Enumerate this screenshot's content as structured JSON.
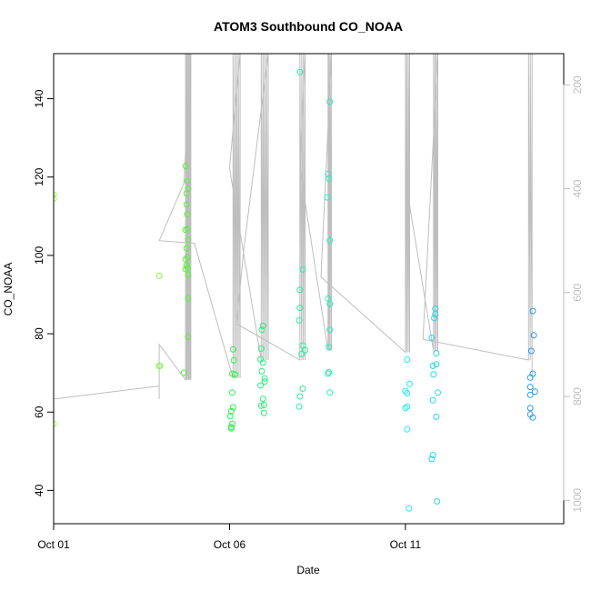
{
  "chart_data": {
    "type": "scatter",
    "title": "ATOM3 Southbound CO_NOAA",
    "xlabel": "Date",
    "ylabel": "CO_NOAA",
    "xlim": [
      0.0,
      14.5
    ],
    "ylim": [
      31.5,
      151.5
    ],
    "y2lim": [
      1045,
      140
    ],
    "x_ticks": [
      {
        "value": 0,
        "label": "Oct 01"
      },
      {
        "value": 5,
        "label": "Oct 06"
      },
      {
        "value": 10,
        "label": "Oct 11"
      }
    ],
    "y_ticks": [
      40,
      60,
      80,
      100,
      120,
      140
    ],
    "y2_ticks": [
      200,
      400,
      600,
      800,
      1000
    ],
    "grid": false,
    "legend": "none",
    "colors": {
      "pressure_line": "#bebebe",
      "frame": "#000000"
    },
    "series": [
      {
        "kind": "points",
        "points": [
          {
            "x": 0.0,
            "y": 115.5,
            "color": "#a0ff3a"
          },
          {
            "x": 0.0,
            "y": 114.5,
            "color": "#a0ff3a"
          },
          {
            "x": 0.0,
            "y": 57.0,
            "color": "#a0ff3a"
          },
          {
            "x": 3.0,
            "y": 94.8,
            "color": "#7ef53c"
          },
          {
            "x": 3.0,
            "y": 71.8,
            "color": "#7ef53c"
          },
          {
            "x": 3.02,
            "y": 71.8,
            "color": "#7ef53c"
          },
          {
            "x": 3.75,
            "y": 122.8,
            "color": "#5cf03c"
          },
          {
            "x": 3.78,
            "y": 115.8,
            "color": "#5cf03c"
          },
          {
            "x": 3.8,
            "y": 119.0,
            "color": "#5cf03c"
          },
          {
            "x": 3.82,
            "y": 117.0,
            "color": "#5cf03c"
          },
          {
            "x": 3.78,
            "y": 113.0,
            "color": "#5cf03c"
          },
          {
            "x": 3.8,
            "y": 110.5,
            "color": "#5cf03c"
          },
          {
            "x": 3.75,
            "y": 106.5,
            "color": "#5cf03c"
          },
          {
            "x": 3.8,
            "y": 106.8,
            "color": "#5cf03c"
          },
          {
            "x": 3.82,
            "y": 104.0,
            "color": "#5cf03c"
          },
          {
            "x": 3.78,
            "y": 101.8,
            "color": "#5cf03c"
          },
          {
            "x": 3.8,
            "y": 99.5,
            "color": "#5cf03c"
          },
          {
            "x": 3.75,
            "y": 99.0,
            "color": "#5cf03c"
          },
          {
            "x": 3.78,
            "y": 97.5,
            "color": "#5cf03c"
          },
          {
            "x": 3.8,
            "y": 96.8,
            "color": "#5cf03c"
          },
          {
            "x": 3.75,
            "y": 96.5,
            "color": "#5cf03c"
          },
          {
            "x": 3.82,
            "y": 95.0,
            "color": "#5cf03c"
          },
          {
            "x": 3.82,
            "y": 89.0,
            "color": "#5cf03c"
          },
          {
            "x": 3.82,
            "y": 79.2,
            "color": "#5cf03c"
          },
          {
            "x": 3.7,
            "y": 70.0,
            "color": "#5cf03c"
          },
          {
            "x": 5.1,
            "y": 76.0,
            "color": "#2cf04e"
          },
          {
            "x": 5.12,
            "y": 73.2,
            "color": "#2cf04e"
          },
          {
            "x": 5.08,
            "y": 69.8,
            "color": "#2cf04e"
          },
          {
            "x": 5.15,
            "y": 69.6,
            "color": "#2cf04e"
          },
          {
            "x": 5.08,
            "y": 65.0,
            "color": "#2cf04e"
          },
          {
            "x": 5.1,
            "y": 61.2,
            "color": "#2cf04e"
          },
          {
            "x": 5.05,
            "y": 60.2,
            "color": "#2cf04e"
          },
          {
            "x": 5.02,
            "y": 59.0,
            "color": "#2cf04e"
          },
          {
            "x": 5.08,
            "y": 57.0,
            "color": "#2cf04e"
          },
          {
            "x": 5.05,
            "y": 56.2,
            "color": "#2cf04e"
          },
          {
            "x": 5.05,
            "y": 55.8,
            "color": "#2cf04e"
          },
          {
            "x": 5.92,
            "y": 81.0,
            "color": "#27ef78"
          },
          {
            "x": 5.95,
            "y": 82.0,
            "color": "#27ef78"
          },
          {
            "x": 5.9,
            "y": 76.2,
            "color": "#27ef78"
          },
          {
            "x": 5.88,
            "y": 73.5,
            "color": "#27ef78"
          },
          {
            "x": 5.95,
            "y": 72.6,
            "color": "#27ef78"
          },
          {
            "x": 5.92,
            "y": 70.4,
            "color": "#27ef78"
          },
          {
            "x": 6.0,
            "y": 68.6,
            "color": "#27ef78"
          },
          {
            "x": 6.0,
            "y": 67.8,
            "color": "#27ef78"
          },
          {
            "x": 5.88,
            "y": 66.8,
            "color": "#27ef78"
          },
          {
            "x": 5.95,
            "y": 63.4,
            "color": "#27ef78"
          },
          {
            "x": 5.98,
            "y": 61.8,
            "color": "#27ef78"
          },
          {
            "x": 5.9,
            "y": 61.6,
            "color": "#27ef78"
          },
          {
            "x": 5.98,
            "y": 59.8,
            "color": "#27ef78"
          },
          {
            "x": 7.0,
            "y": 146.8,
            "color": "#25efa0"
          },
          {
            "x": 7.08,
            "y": 96.4,
            "color": "#25efa0"
          },
          {
            "x": 7.0,
            "y": 91.2,
            "color": "#25efa0"
          },
          {
            "x": 7.0,
            "y": 86.6,
            "color": "#25efa0"
          },
          {
            "x": 6.98,
            "y": 83.4,
            "color": "#25efa0"
          },
          {
            "x": 7.08,
            "y": 77.0,
            "color": "#25efa0"
          },
          {
            "x": 7.15,
            "y": 75.8,
            "color": "#25efa0"
          },
          {
            "x": 7.05,
            "y": 74.8,
            "color": "#25efa0"
          },
          {
            "x": 7.08,
            "y": 66.0,
            "color": "#25efa0"
          },
          {
            "x": 7.0,
            "y": 64.0,
            "color": "#25efa0"
          },
          {
            "x": 6.98,
            "y": 61.4,
            "color": "#25efa0"
          },
          {
            "x": 7.85,
            "y": 139.2,
            "color": "#22f0c0"
          },
          {
            "x": 7.8,
            "y": 120.8,
            "color": "#22f0c0"
          },
          {
            "x": 7.82,
            "y": 119.6,
            "color": "#22f0c0"
          },
          {
            "x": 7.78,
            "y": 114.8,
            "color": "#22f0c0"
          },
          {
            "x": 7.85,
            "y": 103.8,
            "color": "#22f0c0"
          },
          {
            "x": 7.8,
            "y": 89.0,
            "color": "#22f0c0"
          },
          {
            "x": 7.85,
            "y": 87.6,
            "color": "#22f0c0"
          },
          {
            "x": 7.85,
            "y": 81.0,
            "color": "#22f0c0"
          },
          {
            "x": 7.82,
            "y": 76.6,
            "color": "#22f0c0"
          },
          {
            "x": 7.82,
            "y": 70.2,
            "color": "#22f0c0"
          },
          {
            "x": 7.8,
            "y": 69.8,
            "color": "#22f0c0"
          },
          {
            "x": 7.85,
            "y": 65.0,
            "color": "#22f0c0"
          },
          {
            "x": 10.05,
            "y": 73.4,
            "color": "#20ece6"
          },
          {
            "x": 10.0,
            "y": 65.4,
            "color": "#20ece6"
          },
          {
            "x": 10.05,
            "y": 64.8,
            "color": "#20ece6"
          },
          {
            "x": 10.05,
            "y": 61.4,
            "color": "#20ece6"
          },
          {
            "x": 10.0,
            "y": 61.0,
            "color": "#20ece6"
          },
          {
            "x": 10.12,
            "y": 67.2,
            "color": "#20ece6"
          },
          {
            "x": 10.05,
            "y": 55.6,
            "color": "#20ece6"
          },
          {
            "x": 10.1,
            "y": 35.4,
            "color": "#20ece6"
          },
          {
            "x": 10.85,
            "y": 86.4,
            "color": "#22d8ee"
          },
          {
            "x": 10.85,
            "y": 85.0,
            "color": "#22d8ee"
          },
          {
            "x": 10.82,
            "y": 84.0,
            "color": "#22d8ee"
          },
          {
            "x": 10.75,
            "y": 79.0,
            "color": "#22d8ee"
          },
          {
            "x": 10.88,
            "y": 75.0,
            "color": "#22d8ee"
          },
          {
            "x": 10.88,
            "y": 72.2,
            "color": "#22d8ee"
          },
          {
            "x": 10.78,
            "y": 71.8,
            "color": "#22d8ee"
          },
          {
            "x": 10.8,
            "y": 69.6,
            "color": "#22d8ee"
          },
          {
            "x": 10.92,
            "y": 65.0,
            "color": "#22d8ee"
          },
          {
            "x": 10.78,
            "y": 63.0,
            "color": "#22d8ee"
          },
          {
            "x": 10.88,
            "y": 58.8,
            "color": "#22d8ee"
          },
          {
            "x": 10.78,
            "y": 49.0,
            "color": "#22d8ee"
          },
          {
            "x": 10.75,
            "y": 48.0,
            "color": "#22d8ee"
          },
          {
            "x": 10.9,
            "y": 37.2,
            "color": "#22d8ee"
          },
          {
            "x": 13.62,
            "y": 85.8,
            "color": "#2a9ae0"
          },
          {
            "x": 13.65,
            "y": 79.6,
            "color": "#2a9ae0"
          },
          {
            "x": 13.58,
            "y": 75.6,
            "color": "#2a9ae0"
          },
          {
            "x": 13.62,
            "y": 69.8,
            "color": "#2a9ae0"
          },
          {
            "x": 13.55,
            "y": 68.8,
            "color": "#2a9ae0"
          },
          {
            "x": 13.55,
            "y": 66.4,
            "color": "#2a9ae0"
          },
          {
            "x": 13.68,
            "y": 65.2,
            "color": "#2a9ae0"
          },
          {
            "x": 13.55,
            "y": 64.4,
            "color": "#2a9ae0"
          },
          {
            "x": 13.55,
            "y": 61.0,
            "color": "#2a9ae0"
          },
          {
            "x": 13.55,
            "y": 59.4,
            "color": "#2a9ae0"
          },
          {
            "x": 13.62,
            "y": 58.6,
            "color": "#2a9ae0"
          }
        ]
      },
      {
        "kind": "pressure-line",
        "axis": "y2",
        "x": [
          0.0,
          0.0,
          0.0,
          3.0,
          3.0,
          3.0,
          3.75,
          3.75,
          3.78,
          3.78,
          3.8,
          3.8,
          3.83,
          3.83,
          3.85,
          3.85,
          3.88,
          3.88,
          3.9,
          3.9,
          3.7,
          3.0,
          3.0,
          4.0,
          5.1,
          5.1,
          5.15,
          5.15,
          5.2,
          5.2,
          5.25,
          5.25,
          5.3,
          5.3,
          5.0,
          5.9,
          5.9,
          5.95,
          5.95,
          6.0,
          6.0,
          6.05,
          6.05,
          6.1,
          6.1,
          5.4,
          5.2,
          7.0,
          7.0,
          7.05,
          7.05,
          7.1,
          7.1,
          7.15,
          7.15,
          7.0,
          7.8,
          7.8,
          7.83,
          7.83,
          7.86,
          7.86,
          7.9,
          7.9,
          7.6,
          10.0,
          10.0,
          10.04,
          10.04,
          10.08,
          10.08,
          10.12,
          10.12,
          10.1,
          10.8,
          10.8,
          10.84,
          10.84,
          10.88,
          10.88,
          10.92,
          10.92,
          10.5,
          13.5,
          13.5,
          13.55,
          13.55,
          13.6,
          13.6,
          13.6
        ],
        "y": [
          140,
          805,
          805,
          780,
          805,
          700,
          768,
          140,
          768,
          140,
          768,
          140,
          768,
          140,
          768,
          140,
          768,
          140,
          768,
          140,
          390,
          500,
          500,
          505,
          765,
          140,
          765,
          140,
          765,
          140,
          765,
          140,
          765,
          140,
          360,
          730,
          140,
          730,
          140,
          730,
          140,
          730,
          140,
          730,
          140,
          520,
          660,
          730,
          140,
          730,
          140,
          730,
          140,
          730,
          140,
          360,
          712,
          140,
          712,
          140,
          712,
          140,
          712,
          140,
          570,
          715,
          140,
          715,
          140,
          715,
          140,
          715,
          140,
          425,
          712,
          140,
          712,
          140,
          712,
          140,
          712,
          140,
          690,
          730,
          140,
          730,
          140,
          730,
          140,
          760
        ]
      }
    ]
  }
}
